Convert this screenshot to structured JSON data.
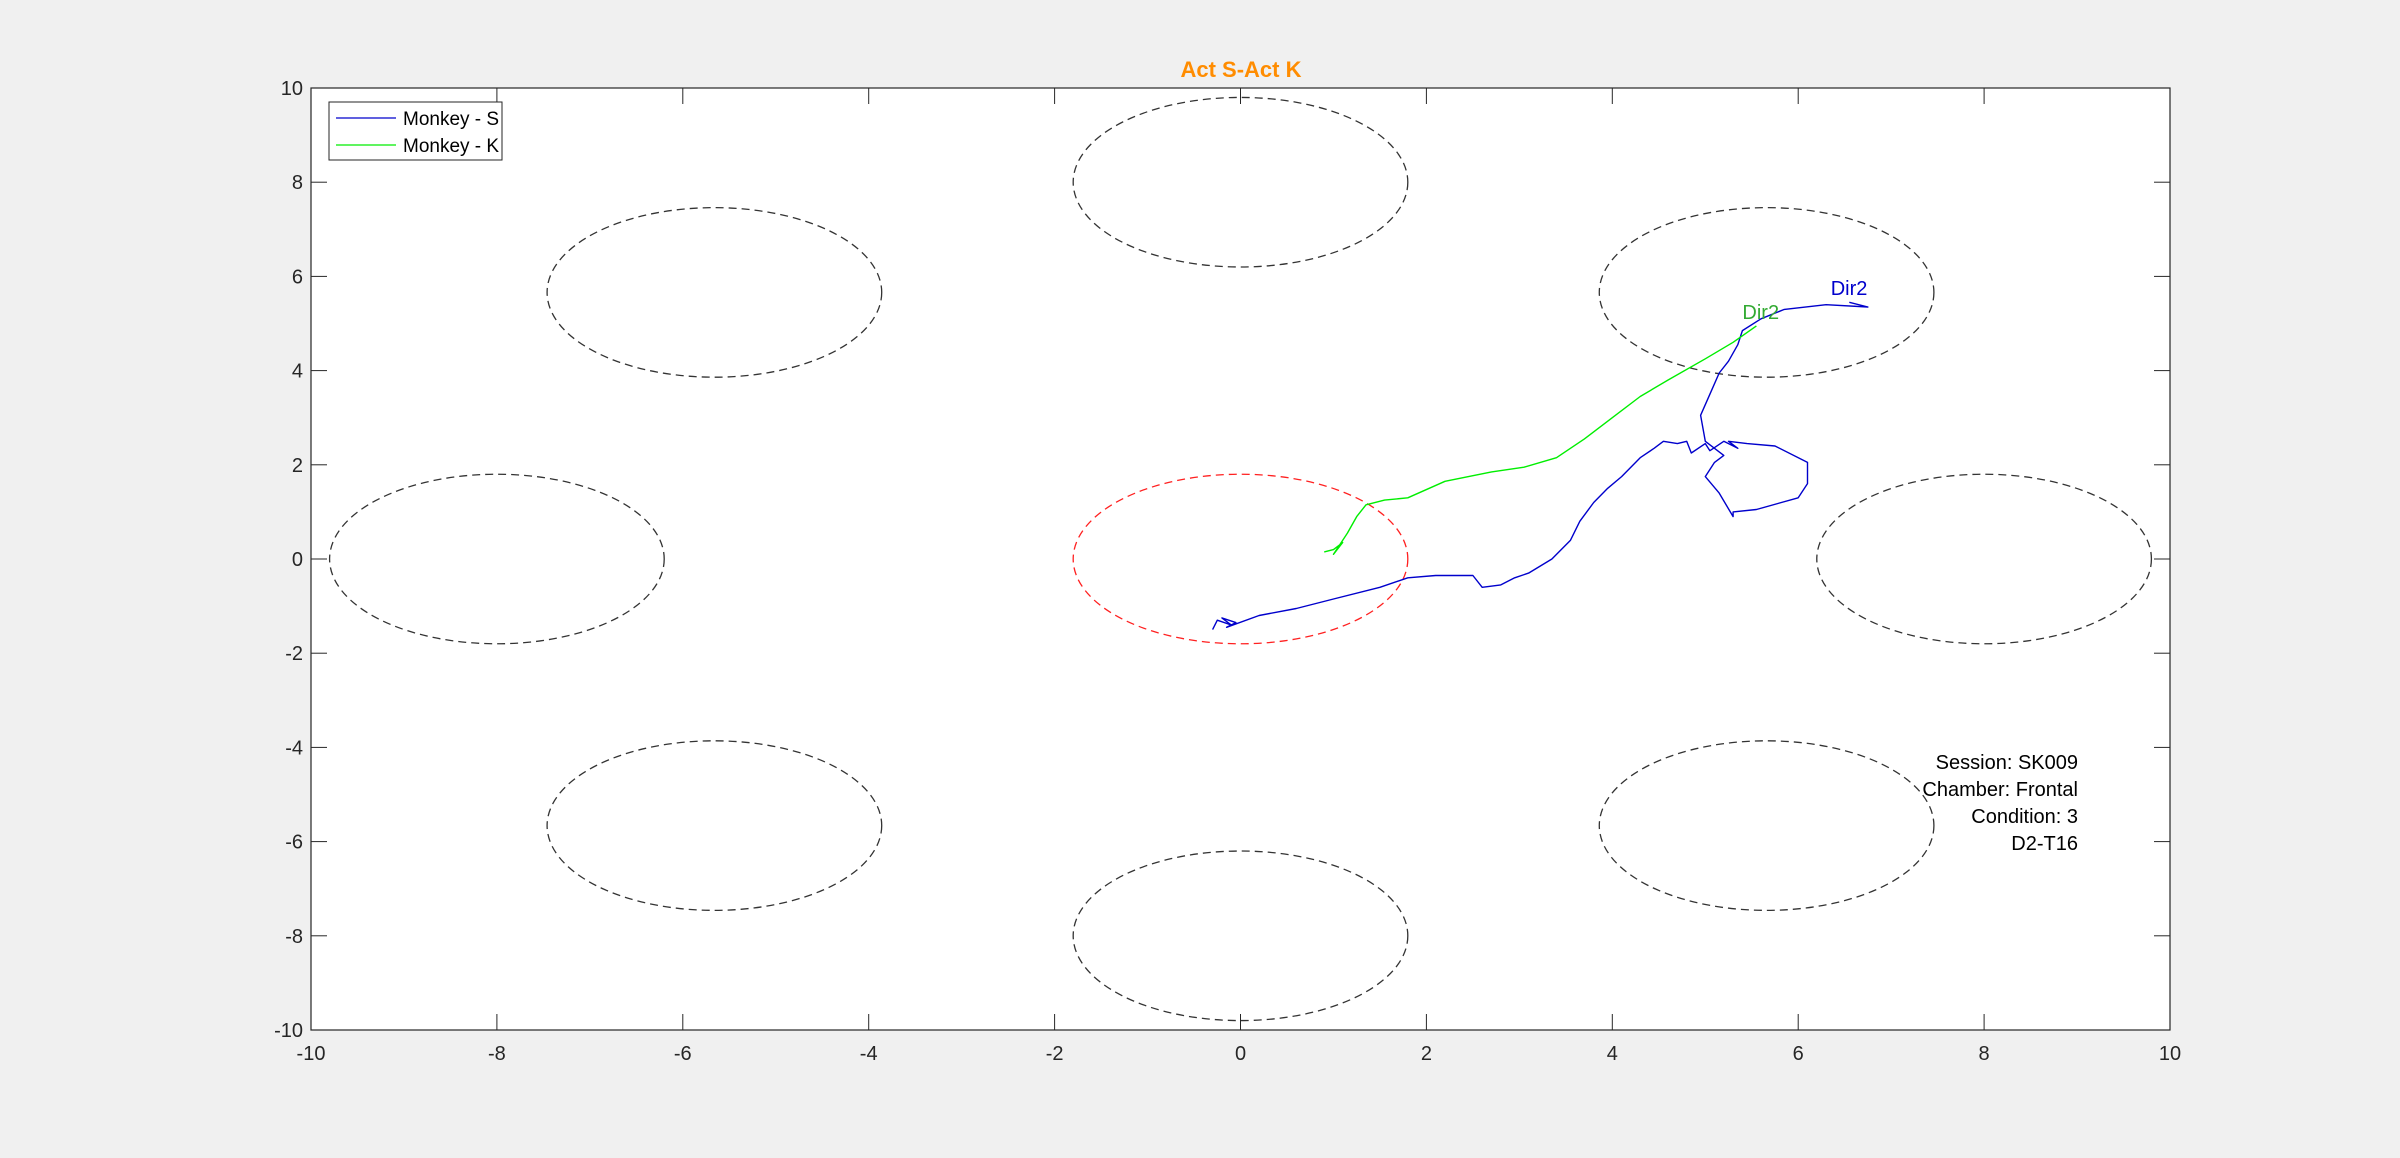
{
  "chart_data": {
    "type": "line",
    "title": "Act S-Act K",
    "title_color": "#ff8c00",
    "xlabel": "",
    "ylabel": "",
    "xlim": [
      -10,
      10
    ],
    "ylim": [
      -10,
      10
    ],
    "xticks": [
      -10,
      -8,
      -6,
      -4,
      -2,
      0,
      2,
      4,
      6,
      8,
      10
    ],
    "yticks": [
      -10,
      -8,
      -6,
      -4,
      -2,
      0,
      2,
      4,
      6,
      8,
      10
    ],
    "grid": false,
    "legend_position": "top-left",
    "series": [
      {
        "name": "Monkey - S",
        "color": "#0000cc",
        "x": [
          -0.3,
          -0.25,
          -0.1,
          -0.2,
          -0.05,
          -0.15,
          0.2,
          0.6,
          1.0,
          1.5,
          1.8,
          2.1,
          2.5,
          2.6,
          2.8,
          2.95,
          3.1,
          3.35,
          3.55,
          3.65,
          3.8,
          3.95,
          4.1,
          4.3,
          4.45,
          4.55,
          4.7,
          4.8,
          4.85,
          5.0,
          5.05,
          5.2,
          5.35,
          5.25,
          5.45,
          5.75,
          6.1,
          6.1,
          6.0,
          5.55,
          5.3,
          5.3,
          5.15,
          5.0,
          5.1,
          5.2,
          5.0,
          4.95,
          5.05,
          5.15,
          5.25,
          5.35,
          5.4,
          5.6,
          5.85,
          6.3,
          6.75,
          6.55
        ],
        "y": [
          -1.5,
          -1.3,
          -1.4,
          -1.25,
          -1.35,
          -1.45,
          -1.2,
          -1.05,
          -0.85,
          -0.6,
          -0.4,
          -0.35,
          -0.35,
          -0.6,
          -0.55,
          -0.4,
          -0.3,
          0.0,
          0.4,
          0.8,
          1.2,
          1.5,
          1.75,
          2.15,
          2.35,
          2.5,
          2.45,
          2.5,
          2.25,
          2.45,
          2.3,
          2.5,
          2.35,
          2.5,
          2.45,
          2.4,
          2.05,
          1.6,
          1.3,
          1.05,
          1.0,
          0.9,
          1.4,
          1.75,
          2.05,
          2.2,
          2.5,
          3.05,
          3.5,
          3.95,
          4.2,
          4.55,
          4.85,
          5.1,
          5.3,
          5.4,
          5.35,
          5.45
        ]
      },
      {
        "name": "Monkey - K",
        "color": "#00ee00",
        "x": [
          0.9,
          1.0,
          1.1,
          1.0,
          1.15,
          1.25,
          1.35,
          1.55,
          1.8,
          2.2,
          2.7,
          3.05,
          3.4,
          3.7,
          4.0,
          4.3,
          4.6,
          5.0,
          5.3,
          5.55
        ],
        "y": [
          0.15,
          0.2,
          0.35,
          0.1,
          0.55,
          0.9,
          1.15,
          1.25,
          1.3,
          1.65,
          1.85,
          1.95,
          2.15,
          2.55,
          3.0,
          3.45,
          3.8,
          4.25,
          4.6,
          4.95
        ]
      }
    ],
    "circles": [
      {
        "cx": 0,
        "cy": 8,
        "r": 1.8,
        "color": "#333333"
      },
      {
        "cx": -5.66,
        "cy": 5.66,
        "r": 1.8,
        "color": "#333333"
      },
      {
        "cx": 5.66,
        "cy": 5.66,
        "r": 1.8,
        "color": "#333333"
      },
      {
        "cx": -8,
        "cy": 0,
        "r": 1.8,
        "color": "#333333"
      },
      {
        "cx": 0,
        "cy": 0,
        "r": 1.8,
        "color": "#ff2020"
      },
      {
        "cx": 8,
        "cy": 0,
        "r": 1.8,
        "color": "#333333"
      },
      {
        "cx": -5.66,
        "cy": -5.66,
        "r": 1.8,
        "color": "#333333"
      },
      {
        "cx": 5.66,
        "cy": -5.66,
        "r": 1.8,
        "color": "#333333"
      },
      {
        "cx": 0,
        "cy": -8,
        "r": 1.8,
        "color": "#333333"
      }
    ],
    "endpoint_labels": [
      {
        "text": "Dir2",
        "x": 6.35,
        "y": 5.6,
        "color": "#0000cc"
      },
      {
        "text": "Dir2",
        "x": 5.4,
        "y": 5.1,
        "color": "#33aa33"
      }
    ],
    "annotation_lines": [
      "Session: SK009",
      "Chamber: Frontal",
      "Condition: 3",
      "D2-T16"
    ]
  }
}
